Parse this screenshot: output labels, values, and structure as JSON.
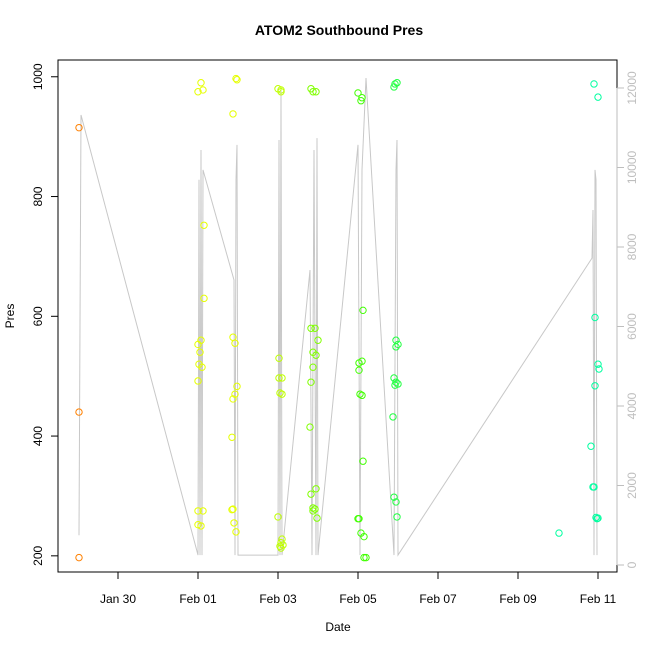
{
  "chart_data": {
    "type": "scatter",
    "title": "ATOM2 Southbound Pres",
    "xlabel": "Date",
    "ylabel": "Pres",
    "xlim": [
      28.5,
      42.475
    ],
    "ylim": [
      173,
      1028
    ],
    "y2lim": [
      -176,
      12704
    ],
    "xticks": [
      {
        "value": 30,
        "label": "Jan 30"
      },
      {
        "value": 32,
        "label": "Feb 01"
      },
      {
        "value": 34,
        "label": "Feb 03"
      },
      {
        "value": 36,
        "label": "Feb 05"
      },
      {
        "value": 38,
        "label": "Feb 07"
      },
      {
        "value": 40,
        "label": "Feb 09"
      },
      {
        "value": 42,
        "label": "Feb 11"
      }
    ],
    "yticks": [
      200,
      400,
      600,
      800,
      1000
    ],
    "y2ticks": [
      0,
      2000,
      4000,
      6000,
      8000,
      10000,
      12000
    ],
    "y2color": "#bebebe",
    "series": [
      {
        "type": "line",
        "axis": "y2",
        "color": "#c8c8c8",
        "x": [
          29.025,
          29.075,
          32,
          32.025,
          32.05,
          32.075,
          32.1,
          32.125,
          32.9,
          32.925,
          32.95,
          32.975,
          33,
          34,
          34.025,
          34.05,
          34.075,
          34.1,
          34.8,
          34.85,
          34.9,
          34.95,
          34.975,
          35,
          36,
          36.05,
          36.1,
          36.2,
          36.9,
          36.95,
          36.975,
          37,
          41.85,
          41.875,
          41.9,
          41.925,
          41.95,
          41.975
        ],
        "values": [
          750,
          11320,
          250,
          9690,
          250,
          10440,
          250,
          9940,
          7170,
          250,
          9690,
          10570,
          250,
          250,
          10690,
          250,
          11950,
          250,
          7420,
          250,
          10440,
          250,
          10740,
          250,
          10570,
          250,
          9940,
          12250,
          250,
          9940,
          10690,
          250,
          7720,
          8930,
          250,
          9940,
          9690,
          250
        ]
      },
      {
        "color": "#ff8000",
        "x": [
          29.025,
          29.025,
          29.025
        ],
        "values": [
          915,
          440,
          197
        ]
      },
      {
        "color": "#e6ff00",
        "x": [
          32,
          32.075,
          32.125,
          32.875,
          32.95,
          32.975,
          32,
          32.075,
          32.025,
          32.05,
          32.1,
          32.15,
          32.15,
          32,
          32.925,
          32.875,
          32.975,
          32.925,
          32.875,
          32.85,
          32,
          32.125,
          32,
          32.075,
          32.875,
          32.85,
          32.9,
          32.95
        ],
        "values": [
          975,
          990,
          978,
          938,
          997,
          995,
          553,
          560,
          520,
          540,
          515,
          630,
          752,
          492,
          555,
          565,
          483,
          470,
          462,
          398,
          275,
          275,
          252,
          250,
          278,
          277,
          255,
          240
        ]
      },
      {
        "color": "#bfff00",
        "x": [
          34,
          34.075,
          34.075,
          34.025,
          34.025,
          34.1,
          34.05,
          34.1,
          34,
          34.1,
          34.075,
          34.125,
          34.05,
          34.075
        ],
        "values": [
          980,
          975,
          978,
          530,
          497,
          497,
          472,
          470,
          265,
          228,
          222,
          218,
          216,
          213
        ]
      },
      {
        "color": "#80ff00",
        "x": [
          34.825,
          34.875,
          34.95,
          34.825,
          34.925,
          35,
          34.875,
          34.95,
          34.875,
          34.825,
          34.8,
          34.825,
          34.95,
          34.875,
          34.925,
          34.975,
          34.875
        ],
        "values": [
          980,
          975,
          975,
          580,
          580,
          560,
          540,
          535,
          515,
          490,
          415,
          303,
          312,
          280,
          278,
          263,
          275
        ]
      },
      {
        "color": "#40ff00",
        "x": [
          36,
          36.1,
          36.075,
          36.125,
          36.025,
          36.1,
          36.025,
          36.05,
          36.1,
          36.125,
          36,
          36.025,
          36.075,
          36.15,
          36.2,
          36.15
        ],
        "values": [
          973,
          965,
          960,
          610,
          522,
          525,
          510,
          470,
          468,
          358,
          262,
          262,
          238,
          232,
          197,
          197
        ]
      },
      {
        "color": "#20ff40",
        "x": [
          36.925,
          36.975,
          36.9,
          36.95,
          37,
          36.95,
          36.9,
          36.95,
          37,
          36.925,
          36.875,
          36.9,
          36.95,
          36.975
        ],
        "values": [
          988,
          990,
          983,
          560,
          553,
          549,
          497,
          490,
          487,
          485,
          432,
          298,
          290,
          265
        ]
      },
      {
        "color": "#00ffa0",
        "x": [
          41.9,
          42,
          41.925,
          42,
          42.025,
          41.925,
          41.825,
          41.875,
          41.9,
          41.95,
          41.975,
          42,
          41.025
        ],
        "values": [
          988,
          966,
          598,
          520,
          512,
          484,
          383,
          315,
          315,
          264,
          262,
          263,
          238
        ]
      }
    ]
  }
}
